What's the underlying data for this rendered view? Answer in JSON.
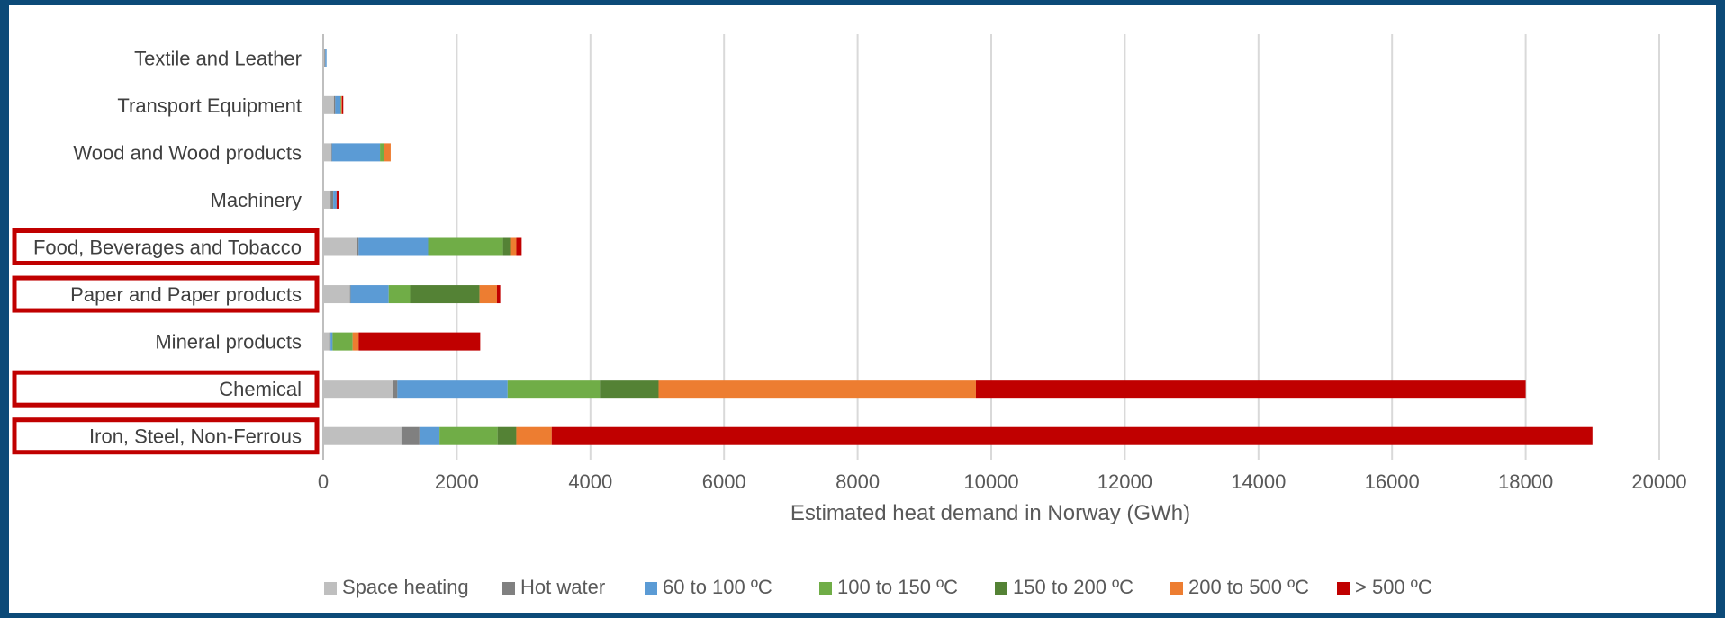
{
  "chart_data": {
    "type": "bar",
    "orientation": "horizontal",
    "stacked": true,
    "title": "",
    "xlabel": "Estimated heat demand in Norway (GWh)",
    "ylabel": "",
    "xlim": [
      0,
      20000
    ],
    "xticks": [
      "0",
      "2000",
      "4000",
      "6000",
      "8000",
      "10000",
      "12000",
      "14000",
      "16000",
      "18000",
      "20000"
    ],
    "grid": "vertical",
    "legend_position": "bottom",
    "categories": [
      "Textile and Leather",
      "Transport Equipment",
      "Wood and Wood products",
      "Machinery",
      "Food, Beverages and Tobacco",
      "Paper and Paper products",
      "Mineral products",
      "Chemical",
      "Iron, Steel, Non-Ferrous"
    ],
    "highlighted_categories": [
      "Food, Beverages and Tobacco",
      "Paper and Paper products",
      "Chemical",
      "Iron, Steel, Non-Ferrous"
    ],
    "highlight_color": "#c00000",
    "series": [
      {
        "name": "Space heating",
        "color": "#bfbfbf",
        "values": [
          20,
          160,
          120,
          110,
          500,
          400,
          90,
          1050,
          1170
        ]
      },
      {
        "name": "Hot water",
        "color": "#808080",
        "values": [
          10,
          20,
          10,
          40,
          30,
          10,
          20,
          60,
          270
        ]
      },
      {
        "name": "60 to 100 ºC",
        "color": "#5b9bd5",
        "values": [
          20,
          80,
          720,
          50,
          1040,
          570,
          30,
          1650,
          300
        ]
      },
      {
        "name": "100 to 150 ºC",
        "color": "#70ad47",
        "values": [
          0,
          10,
          60,
          0,
          1120,
          320,
          300,
          1380,
          870
        ]
      },
      {
        "name": "150 to 200 ºC",
        "color": "#548235",
        "values": [
          0,
          0,
          0,
          0,
          120,
          1040,
          0,
          880,
          280
        ]
      },
      {
        "name": "200 to 500 ºC",
        "color": "#ed7d31",
        "values": [
          0,
          10,
          100,
          0,
          80,
          260,
          90,
          4750,
          530
        ]
      },
      {
        "name": "> 500 ºC",
        "color": "#c00000",
        "values": [
          0,
          20,
          0,
          40,
          80,
          50,
          1820,
          8230,
          15580
        ]
      }
    ]
  }
}
